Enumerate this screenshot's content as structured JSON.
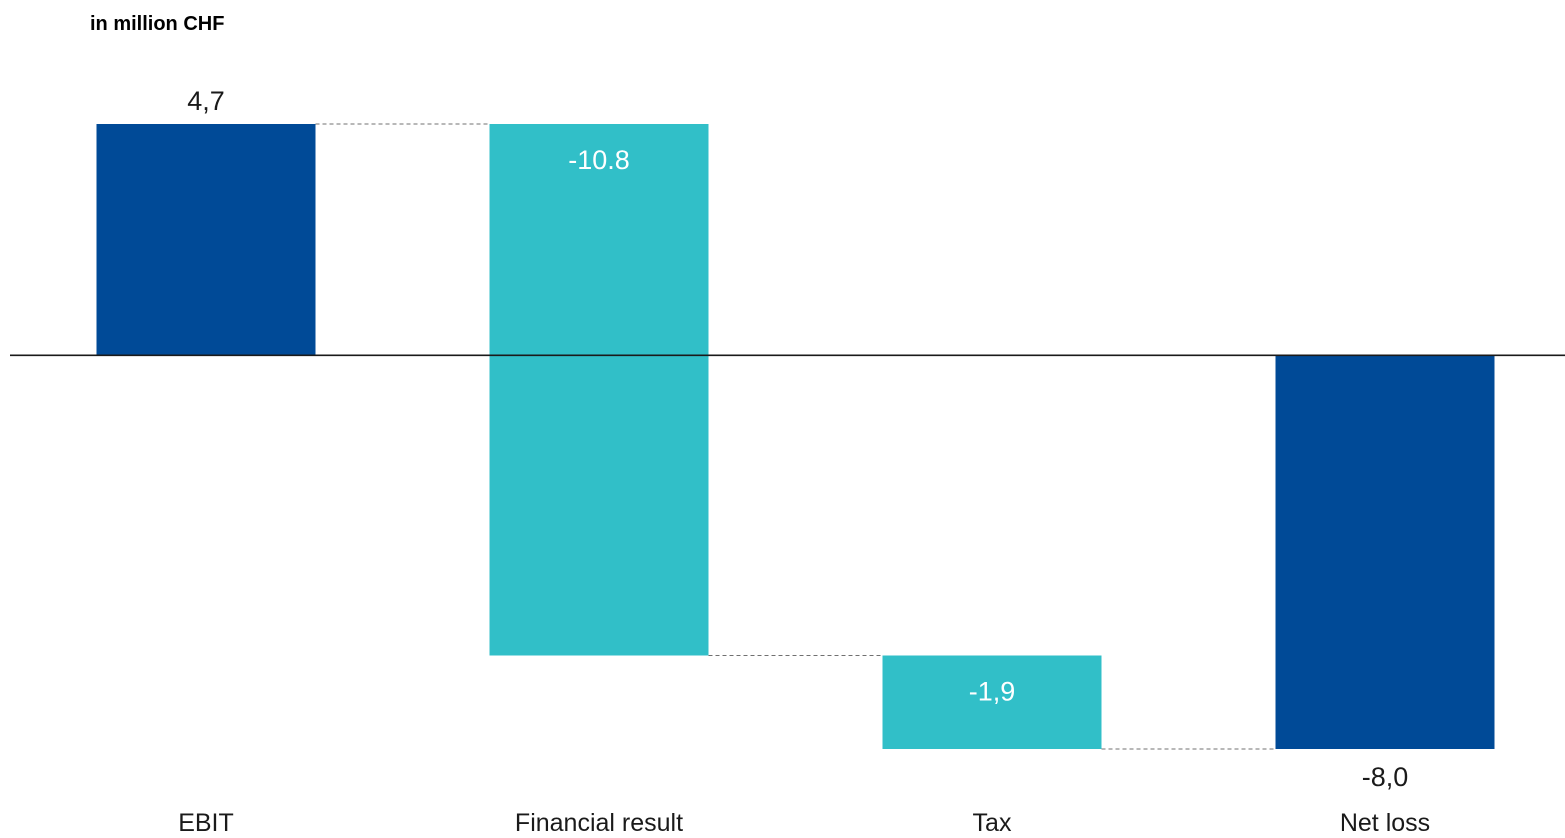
{
  "chart_data": {
    "type": "waterfall",
    "unit_label": "in million CHF",
    "categories": [
      "EBIT",
      "Financial result",
      "Tax",
      "Net loss"
    ],
    "values": [
      4.7,
      -10.8,
      -1.9,
      -8.0
    ],
    "bar_kinds": [
      "total",
      "delta",
      "delta",
      "total"
    ],
    "data_labels": [
      "4,7",
      "-10.8",
      "-1,9",
      "-8,0"
    ],
    "label_positions": [
      "outside",
      "inside",
      "inside",
      "outside"
    ],
    "ylim": [
      -8.0,
      4.7
    ],
    "grid": false,
    "legend": "none",
    "colors": {
      "total": "#004a97",
      "delta": "#31bfc8",
      "axis": "#1a1a1a",
      "connector": "#707070",
      "inside_label": "#ffffff",
      "outside_label": "#1a1a1a"
    }
  }
}
